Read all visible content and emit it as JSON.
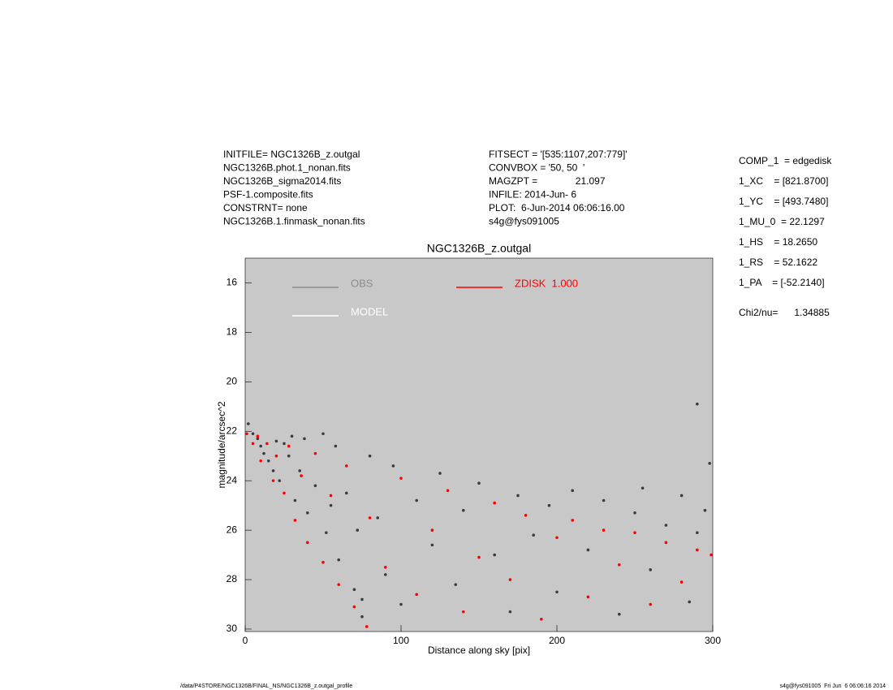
{
  "info_left": [
    "INITFILE= NGC1326B_z.outgal",
    "NGC1326B.phot.1_nonan.fits",
    "NGC1326B_sigma2014.fits",
    "PSF-1.composite.fits",
    "CONSTRNT= none",
    "NGC1326B.1.finmask_nonan.fits"
  ],
  "info_middle": [
    "FITSECT = '[535:1107,207:779]'",
    "CONVBOX = '50, 50  '",
    "MAGZPT =              21.097",
    "INFILE: 2014-Jun- 6",
    "PLOT:  6-Jun-2014 06:06:16.00",
    "s4g@fys091005"
  ],
  "info_right": [
    "COMP_1  = edgedisk",
    "1_XC    = [821.8700]",
    "1_YC    = [493.7480]",
    "1_MU_0  = 22.1297",
    "1_HS    = 18.2650",
    "1_RS    = 52.1622",
    "1_PA    = [-52.2140]",
    "Chi2/nu=      1.34885"
  ],
  "footer_left": "/data/P4STORE/NGC1326B/FINAL_NS/NGC1326B_z.outgal_profile",
  "footer_right": "s4g@fys091005  Fri Jun  6 06:06:16 2014",
  "chart_data": {
    "type": "scatter",
    "title": "NGC1326B_z.outgal",
    "x_label": "Distance along sky [pix]",
    "y_label": "magnitude/arcsec^2",
    "xlim": [
      0,
      300
    ],
    "xticks": [
      0,
      100,
      200,
      300
    ],
    "ylim": [
      30.1,
      15
    ],
    "yticks": [
      16,
      18,
      20,
      22,
      24,
      26,
      28,
      30
    ],
    "background": "#c8c8c8",
    "series": [
      {
        "name": "OBS",
        "color": "#3c3c3c",
        "legend_color": "#8c8c8c",
        "x": [
          2,
          5,
          8,
          10,
          12,
          15,
          18,
          20,
          22,
          25,
          28,
          30,
          32,
          35,
          38,
          40,
          45,
          50,
          52,
          55,
          58,
          60,
          65,
          70,
          72,
          75,
          80,
          85,
          90,
          95,
          100,
          110,
          120,
          125,
          135,
          140,
          150,
          160,
          170,
          175,
          185,
          195,
          200,
          210,
          220,
          230,
          240,
          250,
          255,
          260,
          270,
          280,
          285,
          290,
          295,
          298,
          290,
          75
        ],
        "values": [
          21.7,
          22.1,
          22.3,
          22.6,
          22.9,
          23.2,
          23.6,
          22.4,
          24.0,
          22.5,
          23.0,
          22.2,
          24.8,
          23.6,
          22.3,
          25.3,
          24.2,
          22.1,
          26.1,
          25.0,
          22.6,
          27.2,
          24.5,
          28.4,
          26.0,
          29.5,
          23.0,
          25.5,
          27.8,
          23.4,
          29.0,
          24.8,
          26.6,
          23.7,
          28.2,
          25.2,
          24.1,
          27.0,
          29.3,
          24.6,
          26.2,
          25.0,
          28.5,
          24.4,
          26.8,
          24.8,
          29.4,
          25.3,
          24.3,
          27.6,
          25.8,
          24.6,
          28.9,
          26.1,
          25.2,
          23.3,
          20.9,
          28.8
        ]
      },
      {
        "name": "MODEL",
        "color": "#ffffff",
        "legend_color": "#ffffff",
        "x": [],
        "values": []
      },
      {
        "name": "ZDISK  1.000",
        "color": "#ff0000",
        "legend_color": "#ff0000",
        "x": [
          1,
          5,
          8,
          10,
          14,
          18,
          20,
          25,
          28,
          32,
          36,
          40,
          45,
          50,
          55,
          60,
          65,
          70,
          78,
          80,
          90,
          100,
          110,
          120,
          130,
          140,
          150,
          160,
          170,
          180,
          190,
          200,
          210,
          220,
          230,
          240,
          250,
          260,
          270,
          280,
          290,
          299
        ],
        "values": [
          22.1,
          22.5,
          22.2,
          23.2,
          22.5,
          24.0,
          23.0,
          24.5,
          22.6,
          25.6,
          23.8,
          26.5,
          22.9,
          27.3,
          24.6,
          28.2,
          23.4,
          29.1,
          29.9,
          25.5,
          27.5,
          23.9,
          28.6,
          26.0,
          24.4,
          29.3,
          27.1,
          24.9,
          28.0,
          25.4,
          29.6,
          26.3,
          25.6,
          28.7,
          26.0,
          27.4,
          26.1,
          29.0,
          26.5,
          28.1,
          26.8,
          27.0
        ]
      }
    ]
  }
}
